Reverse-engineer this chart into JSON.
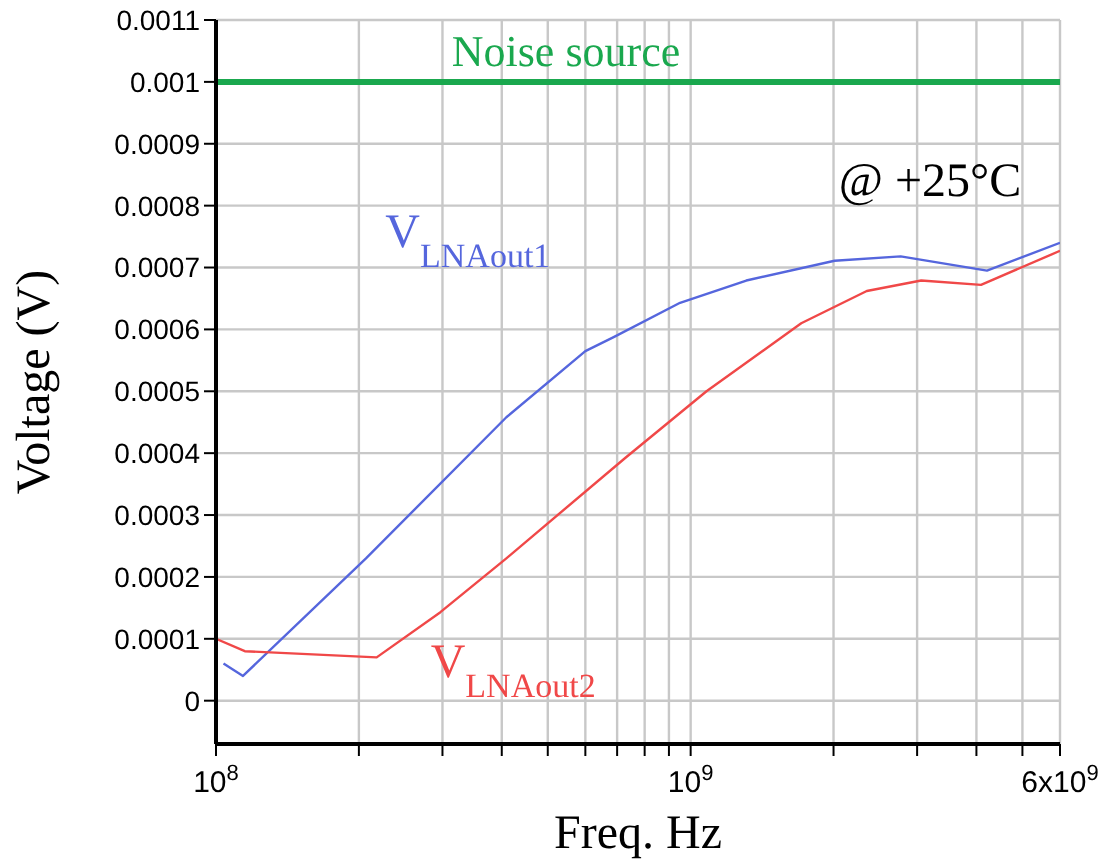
{
  "chart_data": {
    "type": "line",
    "xlabel": "Freq. Hz",
    "ylabel": "Voltage (V)",
    "log": "x",
    "grid": true,
    "legend": false,
    "marker": "none",
    "line_style": "solid",
    "xlim": [
      100000000,
      6000000000
    ],
    "xticks": [
      {
        "value": 100000000,
        "label": "10$^{8}$"
      },
      {
        "value": 200000000,
        "label": null
      },
      {
        "value": 300000000,
        "label": null
      },
      {
        "value": 400000000,
        "label": null
      },
      {
        "value": 500000000,
        "label": null
      },
      {
        "value": 600000000,
        "label": null
      },
      {
        "value": 700000000,
        "label": null
      },
      {
        "value": 800000000,
        "label": null
      },
      {
        "value": 900000000,
        "label": null
      },
      {
        "value": 1000000000,
        "label": "10$^{9}$"
      },
      {
        "value": 2000000000,
        "label": null
      },
      {
        "value": 3000000000,
        "label": null
      },
      {
        "value": 4000000000,
        "label": null
      },
      {
        "value": 5000000000,
        "label": null
      },
      {
        "value": 6000000000,
        "label": "6x10$^{9}$"
      }
    ],
    "ylim": [
      -7e-05,
      0.0011
    ],
    "yticks": [
      0,
      0.0001,
      0.0002,
      0.0003,
      0.0004,
      0.0005,
      0.0006,
      0.0007,
      0.0008,
      0.0009,
      0.001,
      0.0011
    ],
    "annotations": [
      "@ +25°C"
    ],
    "series": [
      {
        "name": "Noise source",
        "color": "#1aa84e",
        "x": [
          100000000,
          6000000000
        ],
        "values": [
          0.001,
          0.001
        ]
      },
      {
        "name": "V$_{LNAout1}$",
        "color": "#5566dd",
        "x": [
          103700000,
          114000000,
          207000000,
          409000000,
          600000000,
          690000000,
          950000000,
          1310000000,
          2010000000,
          2770000000,
          4210000000,
          6000000000
        ],
        "values": [
          6e-05,
          4e-05,
          0.00023,
          0.000458,
          0.000565,
          0.000588,
          0.000643,
          0.000679,
          0.000711,
          0.000718,
          0.000695,
          0.00074
        ]
      },
      {
        "name": "V$_{LNAout2}$",
        "color": "#f04848",
        "x": [
          100000000,
          115000000,
          218000000,
          297000000,
          409000000,
          730000000,
          1080000000,
          1710000000,
          2350000000,
          3060000000,
          4090000000,
          6000000000
        ],
        "values": [
          0.0001,
          8e-05,
          7e-05,
          0.000143,
          0.00023,
          0.000393,
          0.0005,
          0.00061,
          0.000662,
          0.000679,
          0.000672,
          0.000727
        ]
      }
    ]
  }
}
